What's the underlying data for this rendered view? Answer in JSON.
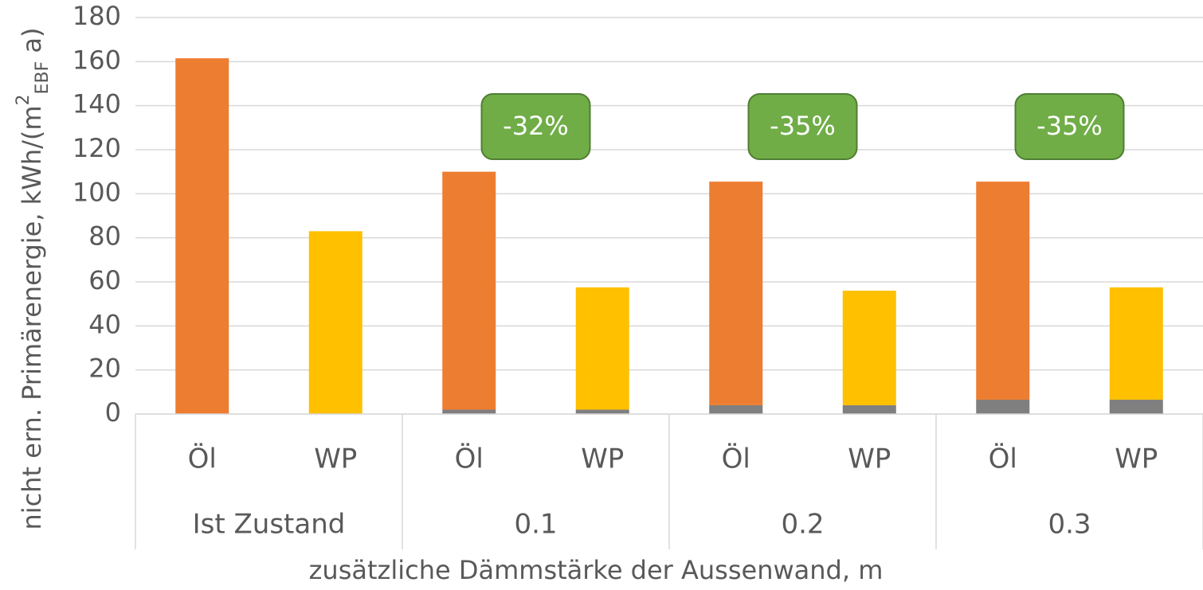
{
  "chart_data": {
    "type": "stacked_bar",
    "categories": [
      "Öl",
      "WP",
      "Öl",
      "WP",
      "Öl",
      "WP",
      "Öl",
      "WP"
    ],
    "groups": [
      "Ist Zustand",
      "0.1",
      "0.2",
      "0.3"
    ],
    "series": [
      {
        "color": "#7f7f7f",
        "values": [
          0,
          0,
          2,
          2,
          4,
          4,
          6.5,
          6.5
        ]
      },
      {
        "colors": [
          "#ed7d31",
          "#ffc000",
          "#ed7d31",
          "#ffc000",
          "#ed7d31",
          "#ffc000",
          "#ed7d31",
          "#ffc000"
        ],
        "values": [
          161.5,
          83,
          108,
          55.5,
          101.5,
          52,
          99,
          51
        ]
      }
    ],
    "ylim": [
      0,
      180
    ],
    "yticks": [
      0,
      20,
      40,
      60,
      80,
      100,
      120,
      140,
      160,
      180
    ],
    "grid": true,
    "xlabel": "zusätzliche Dämmstärke der Aussenwand, m",
    "ylabel": {
      "text": "nicht ern. Primärenergie,  kWh/(m",
      "sup": "2",
      "sub": "EBF",
      "end": " a)"
    },
    "annotations": [
      "-32%",
      "-35%",
      "-35%"
    ],
    "annotation_color": "#70ad47"
  }
}
